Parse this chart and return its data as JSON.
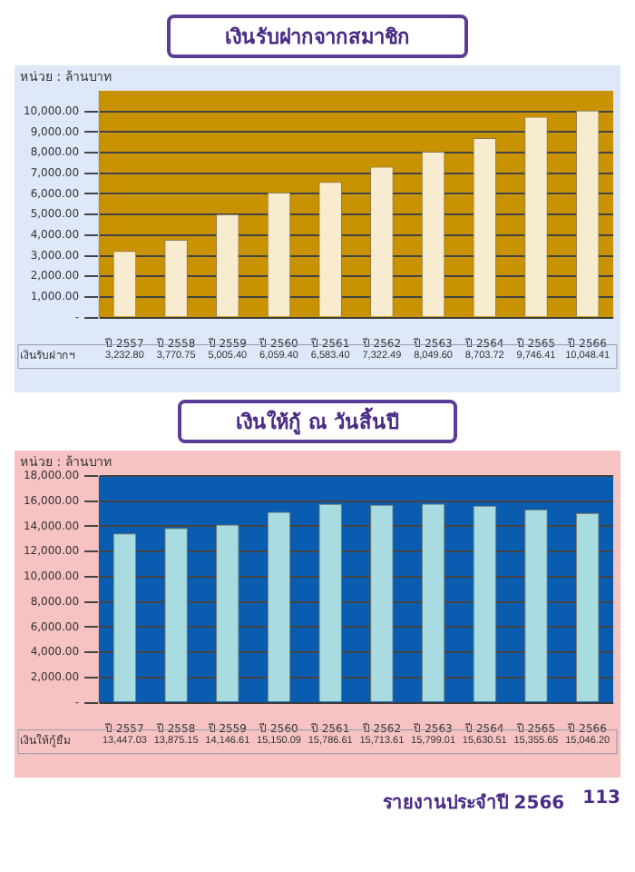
{
  "chart_data": [
    {
      "type": "bar",
      "title": "เงินรับฝากจากสมาชิก",
      "ylabel": "หน่วย : ล้านบาท",
      "categories": [
        "ปี 2557",
        "ปี 2558",
        "ปี 2559",
        "ปี 2560",
        "ปี 2561",
        "ปี 2562",
        "ปี 2563",
        "ปี 2564",
        "ปี 2565",
        "ปี 2566"
      ],
      "series": [
        {
          "name": "เงินรับฝากฯ",
          "color": "#f8ecd0",
          "values": [
            3232.8,
            3770.75,
            5005.4,
            6059.4,
            6583.4,
            7322.49,
            8049.6,
            8703.72,
            9746.41,
            10048.41
          ],
          "value_labels": [
            "3,232.80",
            "3,770.75",
            "5,005.40",
            "6,059.40",
            "6,583.40",
            "7,322.49",
            "8,049.60",
            "8,703.72",
            "9,746.41",
            "10,048.41"
          ]
        }
      ],
      "ylim": [
        0,
        11000
      ],
      "yticks": [
        {
          "value": 0,
          "label": "-"
        },
        {
          "value": 1000,
          "label": "1,000.00"
        },
        {
          "value": 2000,
          "label": "2,000.00"
        },
        {
          "value": 3000,
          "label": "3,000.00"
        },
        {
          "value": 4000,
          "label": "4,000.00"
        },
        {
          "value": 5000,
          "label": "5,000.00"
        },
        {
          "value": 6000,
          "label": "6,000.00"
        },
        {
          "value": 7000,
          "label": "7,000.00"
        },
        {
          "value": 8000,
          "label": "8,000.00"
        },
        {
          "value": 9000,
          "label": "9,000.00"
        },
        {
          "value": 10000,
          "label": "10,000.00"
        }
      ],
      "grid": "y"
    },
    {
      "type": "bar",
      "title": "เงินให้กู้ ณ วันสิ้นปี",
      "ylabel": "หน่วย : ล้านบาท",
      "categories": [
        "ปี 2557",
        "ปี 2558",
        "ปี 2559",
        "ปี 2560",
        "ปี 2561",
        "ปี 2562",
        "ปี 2563",
        "ปี 2564",
        "ปี 2565",
        "ปี 2566"
      ],
      "series": [
        {
          "name": "เงินให้กู้ยืม",
          "color": "#a8dce0",
          "values": [
            13447.03,
            13875.15,
            14146.61,
            15150.09,
            15786.61,
            15713.61,
            15799.01,
            15630.51,
            15355.65,
            15046.2
          ],
          "value_labels": [
            "13,447.03",
            "13,875.15",
            "14,146.61",
            "15,150.09",
            "15,786.61",
            "15,713.61",
            "15,799.01",
            "15,630.51",
            "15,355.65",
            "15,046.20"
          ]
        }
      ],
      "ylim": [
        0,
        18000
      ],
      "yticks": [
        {
          "value": 0,
          "label": "-"
        },
        {
          "value": 2000,
          "label": "2,000.00"
        },
        {
          "value": 4000,
          "label": "4,000.00"
        },
        {
          "value": 6000,
          "label": "6,000.00"
        },
        {
          "value": 8000,
          "label": "8,000.00"
        },
        {
          "value": 10000,
          "label": "10,000.00"
        },
        {
          "value": 12000,
          "label": "12,000.00"
        },
        {
          "value": 14000,
          "label": "14,000.00"
        },
        {
          "value": 16000,
          "label": "16,000.00"
        },
        {
          "value": 18000,
          "label": "18,000.00"
        }
      ],
      "grid": "y",
      "annotations": [
        "รายงานประจำปี 2566",
        "113"
      ]
    }
  ]
}
